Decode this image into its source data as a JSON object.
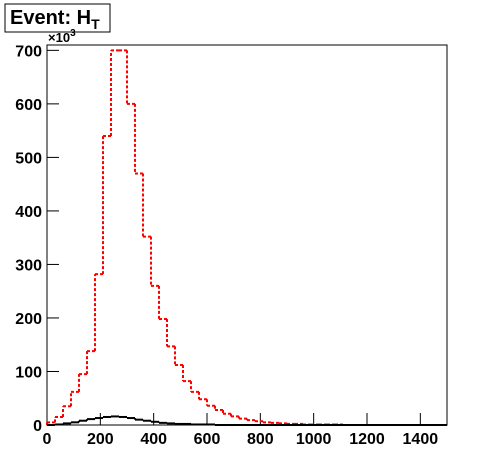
{
  "chart_data": {
    "type": "histogram",
    "title": "Event: H",
    "title_subscript": "T",
    "multiplier_base": "×10",
    "multiplier_exponent": "3",
    "bins": [
      0,
      30,
      60,
      90,
      120,
      150,
      180,
      210,
      240,
      270,
      300,
      330,
      360,
      390,
      420,
      450,
      480,
      510,
      540,
      570,
      600,
      630,
      660,
      690,
      720,
      750,
      780,
      810,
      840,
      870,
      900,
      930,
      960,
      990,
      1020,
      1050,
      1080,
      1110,
      1140,
      1170,
      1200,
      1230,
      1260,
      1290,
      1320,
      1350,
      1380,
      1410,
      1440,
      1470,
      1500
    ],
    "series": [
      {
        "color": "#ff0000",
        "dashed": true,
        "values": [
          5,
          15,
          35,
          62,
          95,
          138,
          282,
          540,
          700,
          700,
          600,
          470,
          352,
          260,
          198,
          147,
          112,
          82,
          62,
          48,
          36,
          28,
          21,
          16,
          12,
          9,
          7,
          5,
          4,
          3,
          2,
          2,
          1,
          1,
          1,
          1,
          1,
          0,
          0,
          0,
          0,
          0,
          0,
          0,
          0,
          0,
          0,
          0,
          0,
          0
        ]
      },
      {
        "color": "#000000",
        "dashed": false,
        "values": [
          0,
          1,
          3,
          5,
          8,
          11,
          13,
          15,
          16,
          15,
          13,
          10,
          8,
          6,
          4,
          3,
          2,
          2,
          1,
          1,
          1,
          0,
          0,
          0,
          0,
          0,
          0,
          0,
          0,
          0,
          0,
          0,
          0,
          0,
          0,
          0,
          0,
          0,
          0,
          0,
          0,
          0,
          0,
          0,
          0,
          0,
          0,
          0,
          0,
          0
        ]
      }
    ],
    "xlim": [
      0,
      1500
    ],
    "xticks": [
      0,
      200,
      400,
      600,
      800,
      1000,
      1200,
      1400
    ],
    "ylim": [
      0,
      710
    ],
    "yticks": [
      0,
      100,
      200,
      300,
      400,
      500,
      600,
      700
    ]
  }
}
